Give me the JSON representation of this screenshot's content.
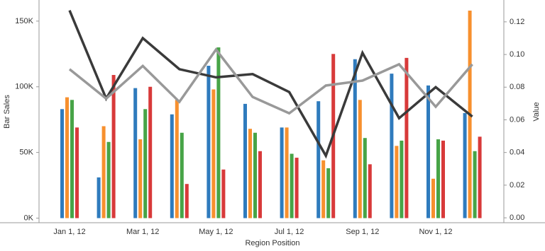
{
  "chart_data": {
    "type": "bar",
    "x_label": "Region Position",
    "y_label": "Bar Sales",
    "y2_label": "Value",
    "categories": [
      "Jan 1, 12",
      null,
      "Mar 1, 12",
      null,
      "May 1, 12",
      null,
      "Jul 1, 12",
      null,
      "Sep 1, 12",
      null,
      "Nov 1, 12",
      null
    ],
    "series": [
      {
        "type": "bar",
        "color": "#2f7bbd",
        "values": [
          83000,
          31000,
          99000,
          79000,
          116000,
          87000,
          69000,
          89000,
          121000,
          110000,
          101000,
          80000
        ]
      },
      {
        "type": "bar",
        "color": "#f7902e",
        "values": [
          92000,
          70000,
          60000,
          90000,
          98000,
          68000,
          69000,
          44000,
          90000,
          55000,
          30000,
          158000
        ]
      },
      {
        "type": "bar",
        "color": "#47a447",
        "values": [
          90000,
          58000,
          83000,
          65000,
          130000,
          65000,
          49000,
          38000,
          61000,
          59000,
          60000,
          51000
        ]
      },
      {
        "type": "bar",
        "color": "#d83a3a",
        "values": [
          69000,
          109000,
          100000,
          26000,
          37000,
          51000,
          46000,
          125000,
          41000,
          122000,
          59000,
          62000
        ]
      },
      {
        "type": "line",
        "axis": "y2",
        "color": "#3a3a3a",
        "values": [
          0.127,
          0.073,
          0.11,
          0.091,
          0.086,
          0.088,
          0.077,
          0.038,
          0.101,
          0.061,
          0.08,
          0.062
        ]
      },
      {
        "type": "line",
        "axis": "y2",
        "color": "#999999",
        "values": [
          0.091,
          0.073,
          0.093,
          0.071,
          0.103,
          0.074,
          0.064,
          0.081,
          0.084,
          0.094,
          0.068,
          0.094
        ]
      }
    ],
    "ylim": [
      -3500,
      165000
    ],
    "yticks": [
      {
        "value": 0,
        "label": "0K"
      },
      {
        "value": 50000,
        "label": "50K"
      },
      {
        "value": 100000,
        "label": "100K"
      },
      {
        "value": 150000,
        "label": "150K"
      }
    ],
    "y2lim": [
      -0.003,
      0.1325
    ],
    "y2ticks": [
      {
        "value": 0,
        "label": "0.00"
      },
      {
        "value": 0.02,
        "label": "0.02"
      },
      {
        "value": 0.04,
        "label": "0.04"
      },
      {
        "value": 0.06,
        "label": "0.06"
      },
      {
        "value": 0.08,
        "label": "0.08"
      },
      {
        "value": 0.1,
        "label": "0.10"
      },
      {
        "value": 0.12,
        "label": "0.12"
      }
    ]
  }
}
